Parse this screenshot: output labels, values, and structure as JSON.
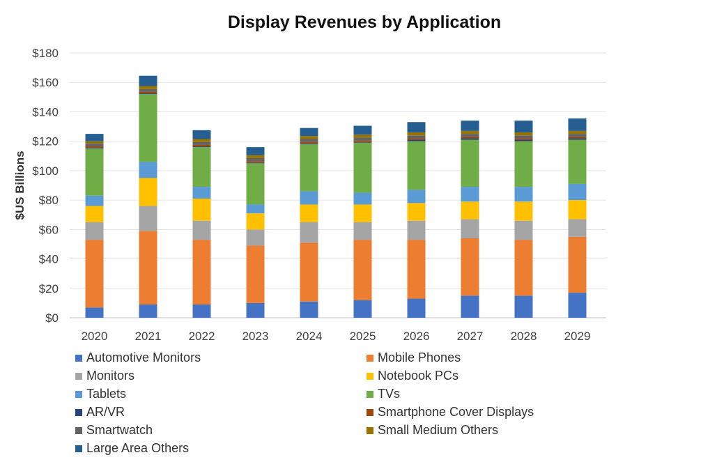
{
  "chart_data": {
    "type": "bar",
    "stacked": true,
    "title": "Display Revenues by Application",
    "ylabel": "$US Billions",
    "xlabel": "",
    "ylim": [
      0,
      180
    ],
    "yticks": [
      0,
      20,
      40,
      60,
      80,
      100,
      120,
      140,
      160,
      180
    ],
    "ytick_labels": [
      "$0",
      "$20",
      "$40",
      "$60",
      "$80",
      "$100",
      "$120",
      "$140",
      "$160",
      "$180"
    ],
    "grid": true,
    "legend_position": "bottom",
    "categories": [
      "2020",
      "2021",
      "2022",
      "2023",
      "2024",
      "2025",
      "2026",
      "2027",
      "2028",
      "2029"
    ],
    "series": [
      {
        "name": "Automotive Monitors",
        "color": "#4472C4",
        "values": [
          7,
          9,
          9,
          10,
          11,
          12,
          13,
          15,
          15,
          17
        ]
      },
      {
        "name": "Mobile Phones",
        "color": "#ED7D31",
        "values": [
          46,
          50,
          44,
          39,
          40,
          41,
          40,
          39,
          38,
          38
        ]
      },
      {
        "name": "Monitors",
        "color": "#A5A5A5",
        "values": [
          12,
          17,
          13,
          11,
          14,
          12,
          13,
          13,
          13,
          12
        ]
      },
      {
        "name": "Notebook PCs",
        "color": "#FFC000",
        "values": [
          11,
          19,
          15,
          11,
          12,
          12,
          12,
          12,
          13,
          13
        ]
      },
      {
        "name": "Tablets",
        "color": "#5B9BD5",
        "values": [
          7,
          11,
          8,
          6,
          9,
          8,
          9,
          10,
          10,
          11
        ]
      },
      {
        "name": "TVs",
        "color": "#70AD47",
        "values": [
          32,
          46,
          27,
          28,
          32,
          34,
          33,
          32,
          31,
          30
        ]
      },
      {
        "name": "AR/VR",
        "color": "#264478",
        "values": [
          0.5,
          0.5,
          0.5,
          0.5,
          0.5,
          0.5,
          1,
          1,
          1,
          1
        ]
      },
      {
        "name": "Smartphone Cover Displays",
        "color": "#9E480E",
        "values": [
          1,
          1,
          1,
          1,
          1,
          1,
          1,
          1,
          1,
          1
        ]
      },
      {
        "name": "Smartwatch",
        "color": "#636363",
        "values": [
          2,
          2,
          2,
          2,
          2,
          2,
          2,
          2,
          2,
          2
        ]
      },
      {
        "name": "Small Medium Others",
        "color": "#997300",
        "values": [
          1.5,
          2,
          2,
          2,
          2,
          2,
          2,
          2,
          2,
          2
        ]
      },
      {
        "name": "Large Area Others",
        "color": "#255E91",
        "values": [
          5,
          7,
          6,
          5.5,
          5.5,
          6,
          7,
          7,
          8,
          8.5
        ]
      }
    ]
  }
}
